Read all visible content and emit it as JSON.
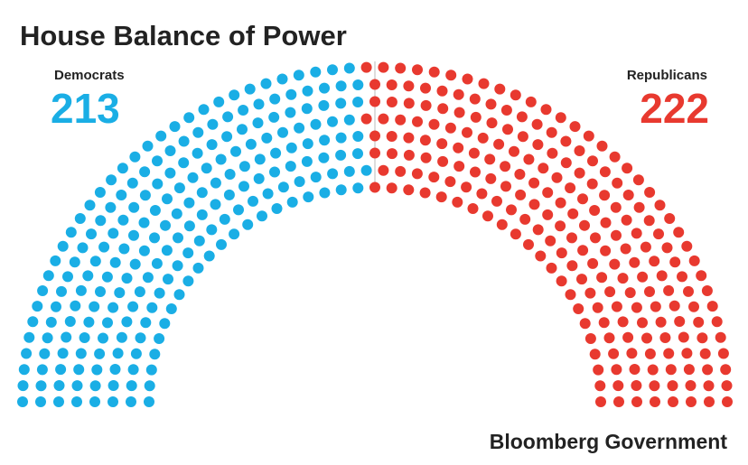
{
  "chart_data": {
    "type": "parliament",
    "title": "House Balance of Power",
    "series": [
      {
        "name": "Democrats",
        "color": "#1aaee5",
        "values": [
          213
        ]
      },
      {
        "name": "Republicans",
        "color": "#e8392f",
        "values": [
          222
        ]
      }
    ],
    "source": "Bloomberg Government"
  }
}
